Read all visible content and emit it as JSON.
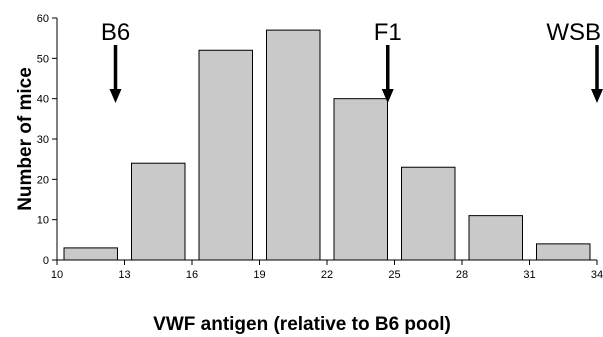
{
  "chart_data": {
    "type": "bar",
    "title": "",
    "xlabel": "VWF antigen (relative to B6 pool)",
    "ylabel": "Number of mice",
    "xlim": [
      10,
      34
    ],
    "ylim": [
      0,
      60
    ],
    "x_ticks": [
      "10",
      "13",
      "16",
      "19",
      "22",
      "25",
      "28",
      "31",
      "34"
    ],
    "y_ticks": [
      "0",
      "10",
      "20",
      "30",
      "40",
      "50",
      "60"
    ],
    "bins": [
      {
        "start": 10,
        "end": 13,
        "value": 3
      },
      {
        "start": 13,
        "end": 16,
        "value": 24
      },
      {
        "start": 16,
        "end": 19,
        "value": 52
      },
      {
        "start": 19,
        "end": 22,
        "value": 57
      },
      {
        "start": 22,
        "end": 25,
        "value": 40
      },
      {
        "start": 25,
        "end": 28,
        "value": 23
      },
      {
        "start": 28,
        "end": 31,
        "value": 11
      },
      {
        "start": 31,
        "end": 34,
        "value": 4
      }
    ],
    "annotations": [
      {
        "label": "B6",
        "x": 12.6
      },
      {
        "label": "F1",
        "x": 24.7
      },
      {
        "label": "WSB",
        "x": 34
      }
    ],
    "grid": false,
    "colors": {
      "bar_fill": "#c9c9c9",
      "bar_edge": "#000000"
    }
  }
}
